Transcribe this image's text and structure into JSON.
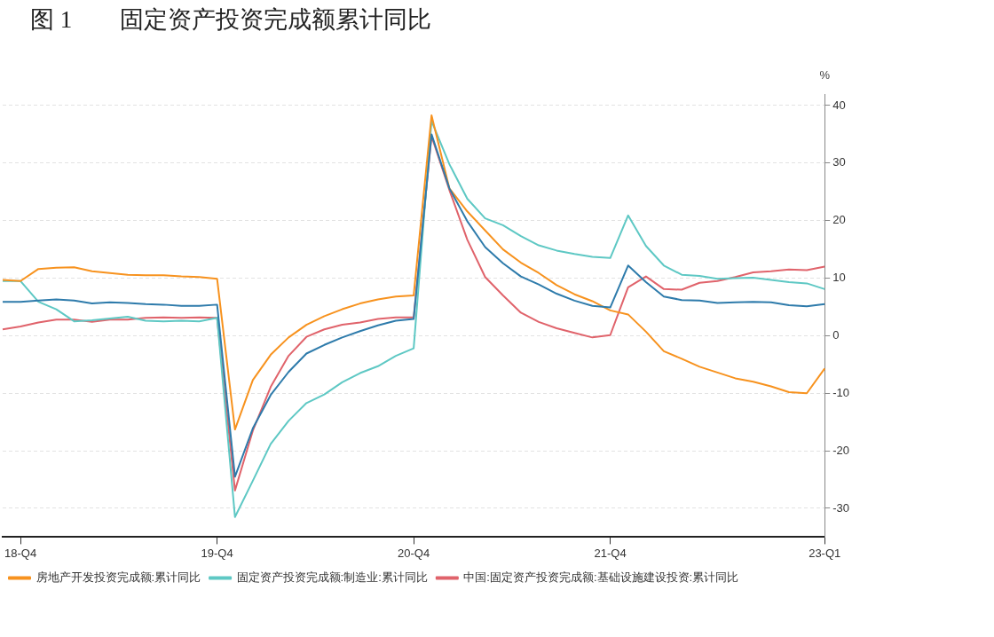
{
  "chart_data": {
    "type": "line",
    "title": "图 1　　固定资产投资完成额累计同比",
    "ylabel": "%",
    "categories": [
      null,
      "18-Q4",
      null,
      null,
      null,
      null,
      null,
      null,
      null,
      null,
      null,
      null,
      "19-Q4",
      null,
      null,
      null,
      null,
      null,
      null,
      null,
      null,
      null,
      null,
      "20-Q4",
      null,
      null,
      null,
      null,
      null,
      null,
      null,
      null,
      null,
      null,
      "21-Q4",
      null,
      null,
      null,
      null,
      null,
      null,
      null,
      null,
      null,
      null,
      null,
      "23-Q1"
    ],
    "ylim": [
      -35,
      42
    ],
    "yticks": [
      -30,
      -20,
      -10,
      0,
      10,
      20,
      30,
      40
    ],
    "grid": "y",
    "legend": "bottom",
    "marker": "none",
    "line_style": "solid",
    "series": [
      {
        "color": "#2e7bab",
        "values": [
          5.9,
          5.9,
          6.1,
          6.3,
          6.1,
          5.6,
          5.8,
          5.7,
          5.5,
          5.4,
          5.2,
          5.2,
          5.4,
          -24.5,
          -16.1,
          -10.3,
          -6.3,
          -3.1,
          -1.6,
          -0.3,
          0.8,
          1.8,
          2.6,
          2.9,
          35.0,
          25.6,
          19.9,
          15.4,
          12.6,
          10.3,
          8.9,
          7.3,
          6.1,
          5.2,
          4.9,
          12.2,
          9.3,
          6.8,
          6.2,
          6.1,
          5.7,
          5.8,
          5.9,
          5.8,
          5.3,
          5.1,
          5.5
        ]
      },
      {
        "name": "房地产开发投资完成额:累计同比",
        "color": "#f7921e",
        "values": [
          9.7,
          9.5,
          11.6,
          11.8,
          11.9,
          11.2,
          10.9,
          10.6,
          10.5,
          10.5,
          10.3,
          10.2,
          9.9,
          -16.3,
          -7.7,
          -3.3,
          -0.3,
          1.9,
          3.4,
          4.6,
          5.6,
          6.3,
          6.8,
          7.0,
          38.3,
          25.6,
          21.6,
          18.3,
          15.0,
          12.7,
          10.9,
          8.8,
          7.2,
          6.0,
          4.4,
          3.7,
          0.7,
          -2.7,
          -4.0,
          -5.4,
          -6.4,
          -7.4,
          -8.0,
          -8.8,
          -9.8,
          -10.0,
          -5.7
        ]
      },
      {
        "name": "固定资产投资完成额:制造业:累计同比",
        "color": "#5ec8c4",
        "values": [
          9.5,
          9.5,
          5.9,
          4.6,
          2.5,
          2.7,
          3.0,
          3.3,
          2.6,
          2.5,
          2.6,
          2.5,
          3.1,
          -31.5,
          -25.2,
          -18.8,
          -14.8,
          -11.7,
          -10.2,
          -8.1,
          -6.5,
          -5.3,
          -3.5,
          -2.2,
          37.3,
          29.8,
          23.8,
          20.4,
          19.2,
          17.3,
          15.7,
          14.8,
          14.2,
          13.7,
          13.5,
          20.9,
          15.6,
          12.2,
          10.6,
          10.4,
          9.9,
          10.0,
          10.1,
          9.7,
          9.3,
          9.1,
          8.1
        ]
      },
      {
        "name": "中国:固定资产投资完成额:基础设施建设投资:累计同比",
        "color": "#e0636b",
        "values": [
          1.1,
          1.6,
          2.3,
          2.8,
          2.8,
          2.4,
          2.8,
          2.8,
          3.1,
          3.2,
          3.1,
          3.2,
          3.1,
          -26.9,
          -16.5,
          -8.9,
          -3.5,
          -0.2,
          1.1,
          1.9,
          2.3,
          2.9,
          3.2,
          3.2,
          34.7,
          25.3,
          16.7,
          10.2,
          7.0,
          4.0,
          2.4,
          1.3,
          0.5,
          -0.3,
          0.1,
          8.4,
          10.3,
          8.1,
          8.0,
          9.2,
          9.5,
          10.2,
          11.0,
          11.2,
          11.5,
          11.4,
          12.0
        ]
      }
    ]
  }
}
